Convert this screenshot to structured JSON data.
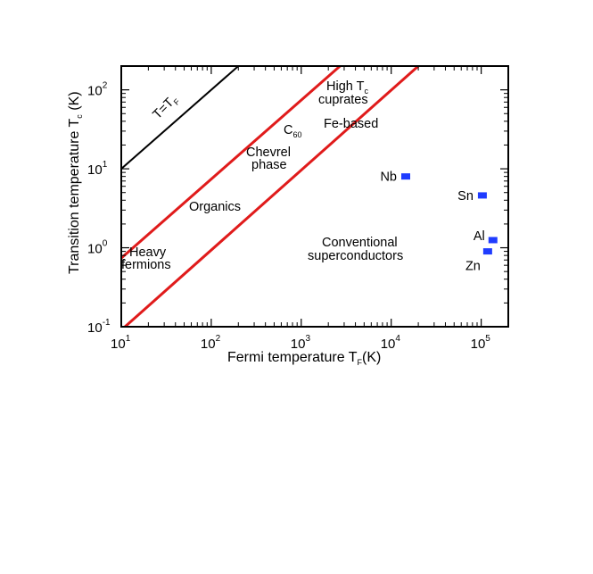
{
  "chart_data": {
    "type": "scatter",
    "title": "",
    "xscale": "log",
    "yscale": "log",
    "xlim": [
      10,
      200000
    ],
    "ylim": [
      0.1,
      200
    ],
    "x_ticks": [
      {
        "value": 10,
        "base": "10",
        "exp": "1"
      },
      {
        "value": 100,
        "base": "10",
        "exp": "2"
      },
      {
        "value": 1000,
        "base": "10",
        "exp": "3"
      },
      {
        "value": 10000,
        "base": "10",
        "exp": "4"
      },
      {
        "value": 100000,
        "base": "10",
        "exp": "5"
      }
    ],
    "y_ticks": [
      {
        "value": 0.1,
        "base": "10",
        "exp": "-1"
      },
      {
        "value": 1,
        "base": "10",
        "exp": "0"
      },
      {
        "value": 10,
        "base": "10",
        "exp": "1"
      },
      {
        "value": 100,
        "base": "10",
        "exp": "2"
      }
    ],
    "xlabel": {
      "main": "Fermi temperature T",
      "sub": "F",
      "tail": "(K)"
    },
    "ylabel": {
      "main": "Transition temperature T",
      "sub": "c",
      "tail": " (K)"
    },
    "points": [
      {
        "label": "Nb",
        "x": 14500,
        "y": 8.0
      },
      {
        "label": "Sn",
        "x": 103000,
        "y": 4.6
      },
      {
        "label": "Al",
        "x": 135000,
        "y": 1.25
      },
      {
        "label": "Zn",
        "x": 118000,
        "y": 0.9
      }
    ],
    "lines": [
      {
        "name": "T=T_F",
        "color": "#000000",
        "x": [
          10,
          200
        ],
        "y": [
          10,
          200
        ]
      },
      {
        "name": "upper-boundary",
        "color": "#e01b1b",
        "x": [
          10,
          2700
        ],
        "y": [
          0.74,
          200
        ]
      },
      {
        "name": "lower-boundary",
        "color": "#e01b1b",
        "x": [
          11,
          20000
        ],
        "y": [
          0.1,
          200
        ]
      }
    ],
    "line_label": {
      "main": "T=T",
      "sub": "F"
    },
    "annotations": {
      "heavy_fermions": [
        "Heavy",
        "fermions"
      ],
      "organics": "Organics",
      "chevrel": [
        "Chevrel",
        "phase"
      ],
      "c60": {
        "main": "C",
        "sub": "60"
      },
      "high_tc": {
        "line1_main": "High T",
        "line1_sub": "c",
        "line2": "cuprates"
      },
      "fe_based": "Fe-based",
      "conventional": [
        "Conventional",
        "superconductors"
      ]
    },
    "colors": {
      "points": "#1f3cff",
      "boundary": "#e01b1b",
      "reference": "#000000"
    },
    "grid": false,
    "legend": "none"
  }
}
